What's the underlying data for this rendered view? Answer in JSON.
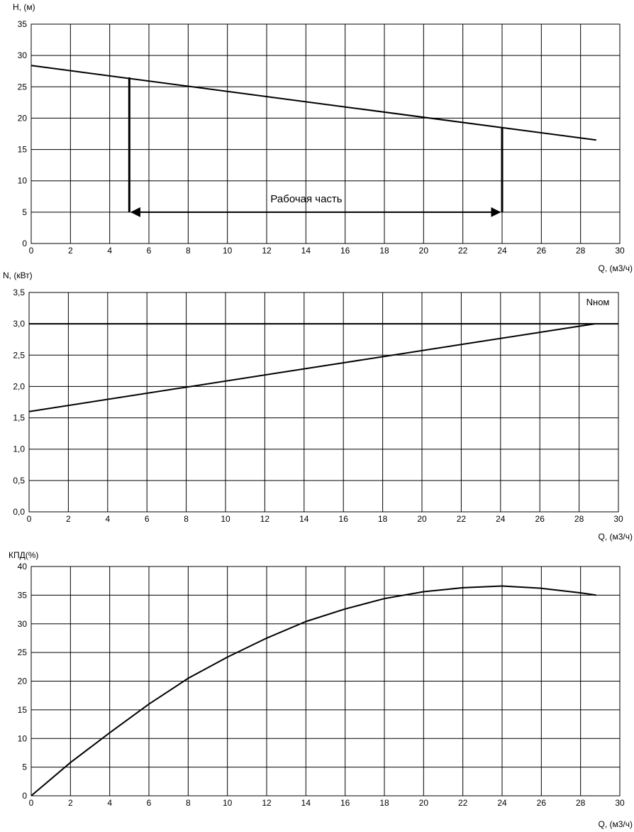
{
  "chart_data": [
    {
      "type": "line",
      "ylabel": "H, (м)",
      "xlabel": "Q, (м3/ч)",
      "xlim": [
        0,
        30
      ],
      "ylim": [
        0,
        35
      ],
      "xticks": [
        "0",
        "2",
        "4",
        "6",
        "8",
        "10",
        "12",
        "14",
        "16",
        "18",
        "20",
        "22",
        "24",
        "26",
        "28",
        "30"
      ],
      "yticks": [
        "0",
        "5",
        "10",
        "15",
        "20",
        "25",
        "30",
        "35"
      ],
      "grid": true,
      "series": [
        {
          "x": [
            0,
            28.8
          ],
          "y": [
            28.4,
            16.5
          ]
        }
      ],
      "working_range": {
        "label": "Рабочая часть",
        "q_min": 5,
        "q_max": 24,
        "h_at_q_min": 26.5,
        "h_at_q_max": 18.5,
        "arrow_level": 5
      }
    },
    {
      "type": "line",
      "ylabel": "N, (кВт)",
      "xlabel": "Q, (м3/ч)",
      "xlim": [
        0,
        30
      ],
      "ylim": [
        0,
        3.5
      ],
      "xticks": [
        "0",
        "2",
        "4",
        "6",
        "8",
        "10",
        "12",
        "14",
        "16",
        "18",
        "20",
        "22",
        "24",
        "26",
        "28",
        "30"
      ],
      "yticks": [
        "0,0",
        "0,5",
        "1,0",
        "1,5",
        "2,0",
        "2,5",
        "3,0",
        "3,5"
      ],
      "grid": true,
      "series": [
        {
          "x": [
            0,
            28.8
          ],
          "y": [
            1.6,
            3.0
          ]
        }
      ],
      "reference_line": {
        "label": "Nном",
        "value": 3.0
      }
    },
    {
      "type": "line",
      "ylabel": "КПД(%)",
      "xlabel": "Q, (м3/ч)",
      "xlim": [
        0,
        30
      ],
      "ylim": [
        0,
        40
      ],
      "xticks": [
        "0",
        "2",
        "4",
        "6",
        "8",
        "10",
        "12",
        "14",
        "16",
        "18",
        "20",
        "22",
        "24",
        "26",
        "28",
        "30"
      ],
      "yticks": [
        "0",
        "5",
        "10",
        "15",
        "20",
        "25",
        "30",
        "35",
        "40"
      ],
      "grid": true,
      "series": [
        {
          "x": [
            0,
            2,
            4,
            6,
            8,
            10,
            12,
            14,
            16,
            18,
            20,
            22,
            24,
            26,
            28,
            28.8
          ],
          "y": [
            0,
            5.8,
            11.0,
            16.0,
            20.5,
            24.2,
            27.5,
            30.4,
            32.6,
            34.4,
            35.6,
            36.3,
            36.6,
            36.2,
            35.4,
            35.0
          ]
        }
      ]
    }
  ]
}
